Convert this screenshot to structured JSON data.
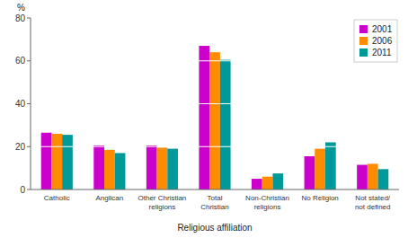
{
  "chart_data": {
    "type": "bar",
    "categories": [
      "Catholic",
      "Anglican",
      "Other Christian\nreligions",
      "Total\nChristian",
      "Non-Christian\nreligions",
      "No Religion",
      "Not stated/\nnot defined"
    ],
    "series": [
      {
        "name": "2001",
        "color": "#CC00CC",
        "values": [
          26.5,
          20.5,
          20.5,
          67.0,
          5.0,
          15.5,
          11.5
        ]
      },
      {
        "name": "2006",
        "color": "#FF8C00",
        "values": [
          26.0,
          18.5,
          19.5,
          64.0,
          6.0,
          19.0,
          12.0
        ]
      },
      {
        "name": "2011",
        "color": "#009999",
        "values": [
          25.5,
          17.0,
          19.0,
          60.5,
          7.5,
          22.0,
          9.5
        ]
      }
    ],
    "xlabel": "Religious affiliation",
    "ylabel": "%",
    "ylim": [
      0,
      80
    ],
    "yticks": [
      0,
      20,
      40,
      60,
      80
    ],
    "grid": true,
    "legend": "upper right"
  }
}
